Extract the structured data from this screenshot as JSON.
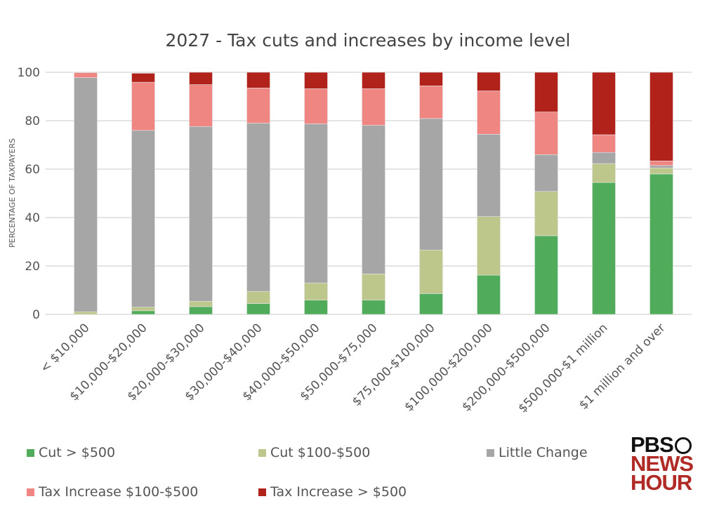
{
  "chart_data": {
    "type": "bar",
    "stacked": true,
    "title": "2027 - Tax cuts and increases by income level",
    "xlabel": "",
    "ylabel": "PERCENTAGE OF TAXPAYERS",
    "ylim": [
      0,
      100
    ],
    "yticks": [
      0,
      20,
      40,
      60,
      80,
      100
    ],
    "grid": true,
    "legend_position": "bottom",
    "categories": [
      "< $10,000",
      "$10,000-$20,000",
      "$20,000-$30,000",
      "$30,000-$40,000",
      "$40,000-$50,000",
      "$50,000-$75,000",
      "$75,000-$100,000",
      "$100,000-$200,000",
      "$200,000-$500,000",
      "$500,000-$1 million",
      "$1 million and over"
    ],
    "series": [
      {
        "name": "Cut > $500",
        "color": "#50ab5a",
        "values": [
          0,
          1.5,
          3.2,
          4.5,
          5.9,
          5.9,
          8.6,
          16.2,
          32.5,
          54.5,
          58.0
        ]
      },
      {
        "name": "Cut $100-$500",
        "color": "#bdc68b",
        "values": [
          1.1,
          1.5,
          2.2,
          5.0,
          7.1,
          10.8,
          18.0,
          24.2,
          18.3,
          7.8,
          2.5
        ]
      },
      {
        "name": "Little Change",
        "color": "#a6a6a6",
        "values": [
          96.7,
          73.0,
          72.2,
          69.5,
          65.7,
          61.4,
          54.3,
          34.0,
          15.2,
          4.6,
          1.0
        ]
      },
      {
        "name": "Tax Increase $100-$500",
        "color": "#f08682",
        "values": [
          2.0,
          19.9,
          17.3,
          14.5,
          14.5,
          15.1,
          13.5,
          17.9,
          17.6,
          7.3,
          1.9
        ]
      },
      {
        "name": "Tax Increase > $500",
        "color": "#b0221a",
        "values": [
          0.2,
          3.7,
          5.1,
          6.5,
          6.8,
          6.8,
          5.6,
          7.7,
          16.4,
          25.8,
          36.6
        ]
      }
    ]
  },
  "logo": {
    "line1": "PBS",
    "line2": "NEWS",
    "line3": "HOUR"
  }
}
